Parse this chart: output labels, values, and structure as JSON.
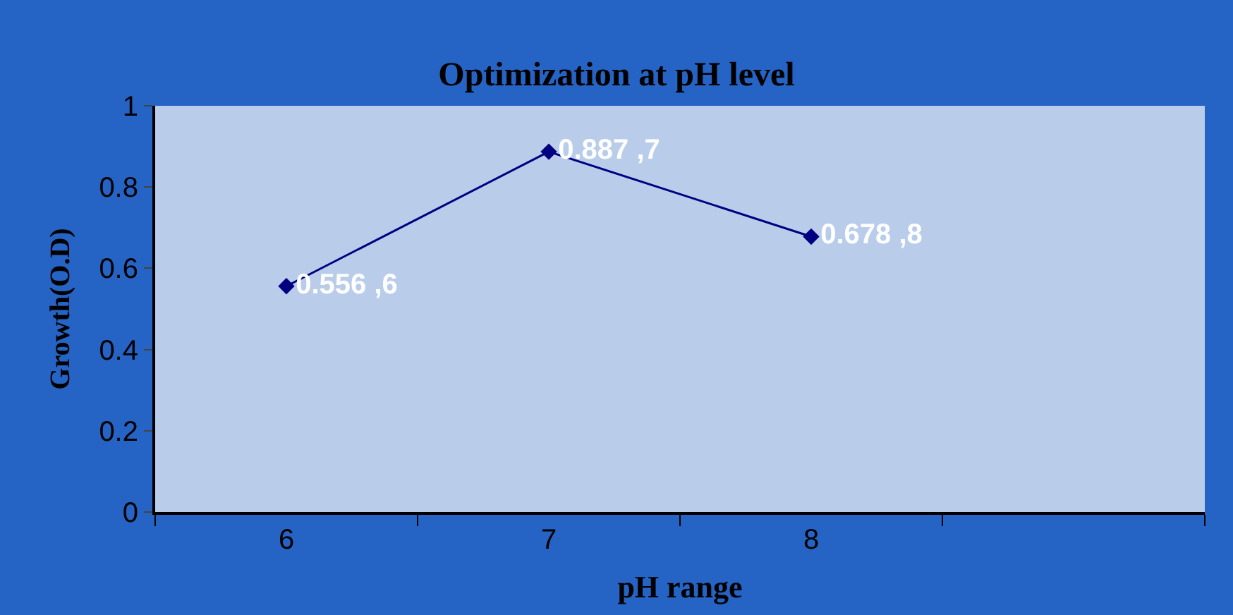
{
  "chart_data": {
    "type": "line",
    "title": "Optimization at pH level",
    "xlabel": "pH range",
    "ylabel": "Growth(O.D)",
    "categories": [
      "6",
      "7",
      "8",
      null
    ],
    "series": [
      {
        "color": "#000080",
        "values": [
          0.556,
          0.887,
          0.678,
          null
        ],
        "value_labels": [
          "0.556 ,6",
          "0.887 ,7",
          "0.678 ,8",
          null
        ]
      }
    ],
    "ylim": [
      0,
      1
    ],
    "yticks": [
      0,
      0.2,
      0.4,
      0.6,
      0.8,
      1
    ],
    "marker": "diamond",
    "line_style": "solid",
    "grid": false,
    "legend": false
  }
}
